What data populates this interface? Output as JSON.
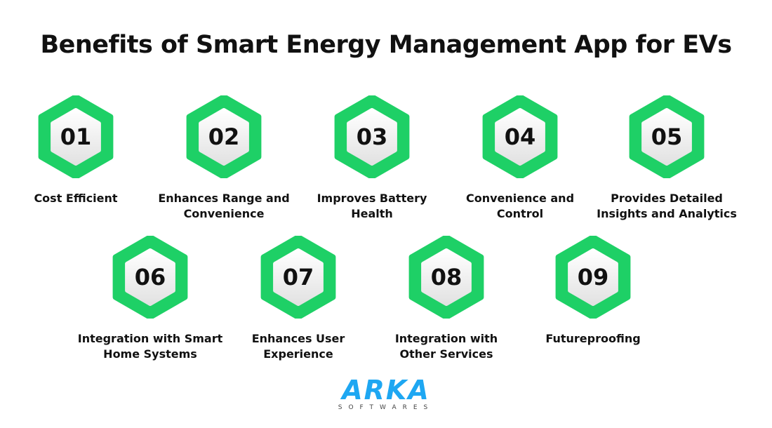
{
  "title": "Benefits of Smart Energy Management App for EVs",
  "colors": {
    "hex_outer": "#1ed066",
    "hex_inner_top": "#ffffff",
    "hex_inner_bottom": "#e2e2e2",
    "logo": "#1ea7f2"
  },
  "items": [
    {
      "number": "01",
      "label": "Cost Efficient"
    },
    {
      "number": "02",
      "label": "Enhances Range and Convenience"
    },
    {
      "number": "03",
      "label": "Improves Battery Health"
    },
    {
      "number": "04",
      "label": "Convenience and Control"
    },
    {
      "number": "05",
      "label": "Provides Detailed Insights and Analytics"
    },
    {
      "number": "06",
      "label": "Integration with Smart Home Systems"
    },
    {
      "number": "07",
      "label": "Enhances User Experience"
    },
    {
      "number": "08",
      "label": "Integration with Other Services"
    },
    {
      "number": "09",
      "label": "Futureproofing"
    }
  ],
  "logo": {
    "main": "ARKA",
    "sub": "SOFTWARES"
  }
}
